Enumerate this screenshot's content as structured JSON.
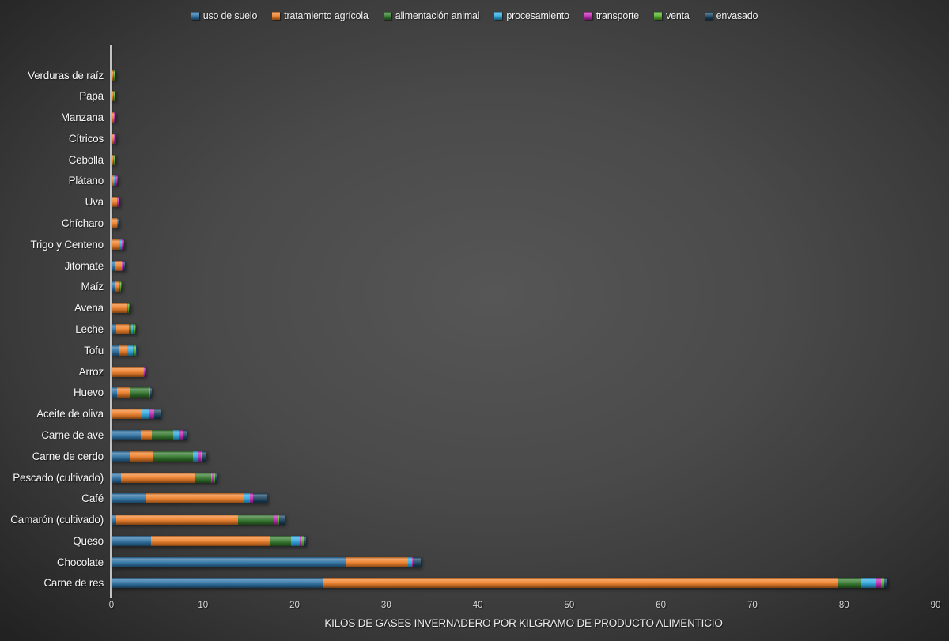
{
  "chart_data": {
    "type": "bar",
    "orientation": "horizontal-stacked",
    "title": "",
    "xlabel": "KILOS DE GASES INVERNADERO POR KILGRAMO DE PRODUCTO ALIMENTICIO",
    "ylabel": "",
    "xlim": [
      0,
      90
    ],
    "x_ticks": [
      0,
      10,
      20,
      30,
      40,
      50,
      60,
      70,
      80,
      90
    ],
    "grid": false,
    "legend_position": "top",
    "units": "kg CO2eq por kg",
    "series": [
      {
        "name": "uso de suelo",
        "color": "#2e72a4"
      },
      {
        "name": "tratamiento agrícola",
        "color": "#f08028"
      },
      {
        "name": "alimentación animal",
        "color": "#35792e"
      },
      {
        "name": "procesamiento",
        "color": "#30a9e0"
      },
      {
        "name": "transporte",
        "color": "#c02ab4"
      },
      {
        "name": "venta",
        "color": "#55b22d"
      },
      {
        "name": "envasado",
        "color": "#1d4561"
      }
    ],
    "categories": [
      "Verduras de raíz",
      "Papa",
      "Manzana",
      "Cítricos",
      "Cebolla",
      "Plátano",
      "Uva",
      "Chícharo",
      "Trigo y Centeno",
      "Jitomate",
      "Maíz",
      "Avena",
      "Leche",
      "Tofu",
      "Arroz",
      "Huevo",
      "Aceite de oliva",
      "Carne de ave",
      "Carne de cerdo",
      "Pescado (cultivado)",
      "Café",
      "Camarón (cultivado)",
      "Queso",
      "Chocolate",
      "Carne de res"
    ],
    "values": [
      [
        0,
        0.2,
        0,
        0,
        0.09,
        0.04,
        0.04
      ],
      [
        0,
        0.19,
        0,
        0,
        0.09,
        0.04,
        0.04
      ],
      [
        0,
        0.23,
        0,
        0,
        0.09,
        0.02,
        0.04
      ],
      [
        0,
        0.3,
        0,
        0,
        0.09,
        0.02,
        0.02
      ],
      [
        0,
        0.21,
        0,
        0,
        0.09,
        0.04,
        0.04
      ],
      [
        0,
        0.3,
        0,
        0.05,
        0.25,
        0.02,
        0.05
      ],
      [
        0.05,
        0.55,
        0,
        0,
        0.15,
        0.03,
        0.08
      ],
      [
        0,
        0.6,
        0,
        0,
        0.08,
        0.03,
        0.07
      ],
      [
        0.1,
        0.8,
        0,
        0.2,
        0.12,
        0.06,
        0.09
      ],
      [
        0.37,
        0.71,
        0,
        0.01,
        0.18,
        0.02,
        0.15
      ],
      [
        0.32,
        0.5,
        0,
        0.08,
        0.09,
        0.04,
        0.08
      ],
      [
        0,
        1.6,
        0,
        0.12,
        0.09,
        0.06,
        0.18
      ],
      [
        0.5,
        1.4,
        0.25,
        0.15,
        0.09,
        0.17,
        0.1
      ],
      [
        0.8,
        0.85,
        0,
        0.65,
        0.1,
        0.25,
        0.05
      ],
      [
        0,
        3.45,
        0,
        0.07,
        0.07,
        0.06,
        0.08
      ],
      [
        0.6,
        1.4,
        2.1,
        0,
        0.09,
        0.04,
        0.15
      ],
      [
        0,
        3.4,
        0,
        0.7,
        0.55,
        0.05,
        0.7
      ],
      [
        3.2,
        1.2,
        2.3,
        0.65,
        0.45,
        0.1,
        0.3
      ],
      [
        2.1,
        2.5,
        4.3,
        0.5,
        0.4,
        0.15,
        0.4
      ],
      [
        1.05,
        8.05,
        1.8,
        0.05,
        0.25,
        0.1,
        0.2
      ],
      [
        3.7,
        10.8,
        0,
        0.65,
        0.3,
        0.05,
        1.5
      ],
      [
        0.5,
        13.3,
        3.9,
        0,
        0.4,
        0.2,
        0.6
      ],
      [
        4.3,
        13.1,
        2.2,
        1.0,
        0.15,
        0.35,
        0.15
      ],
      [
        25.6,
        6.8,
        0,
        0.4,
        0.1,
        0.05,
        0.8
      ],
      [
        23.1,
        56.3,
        2.5,
        1.6,
        0.5,
        0.4,
        0.3
      ]
    ]
  }
}
